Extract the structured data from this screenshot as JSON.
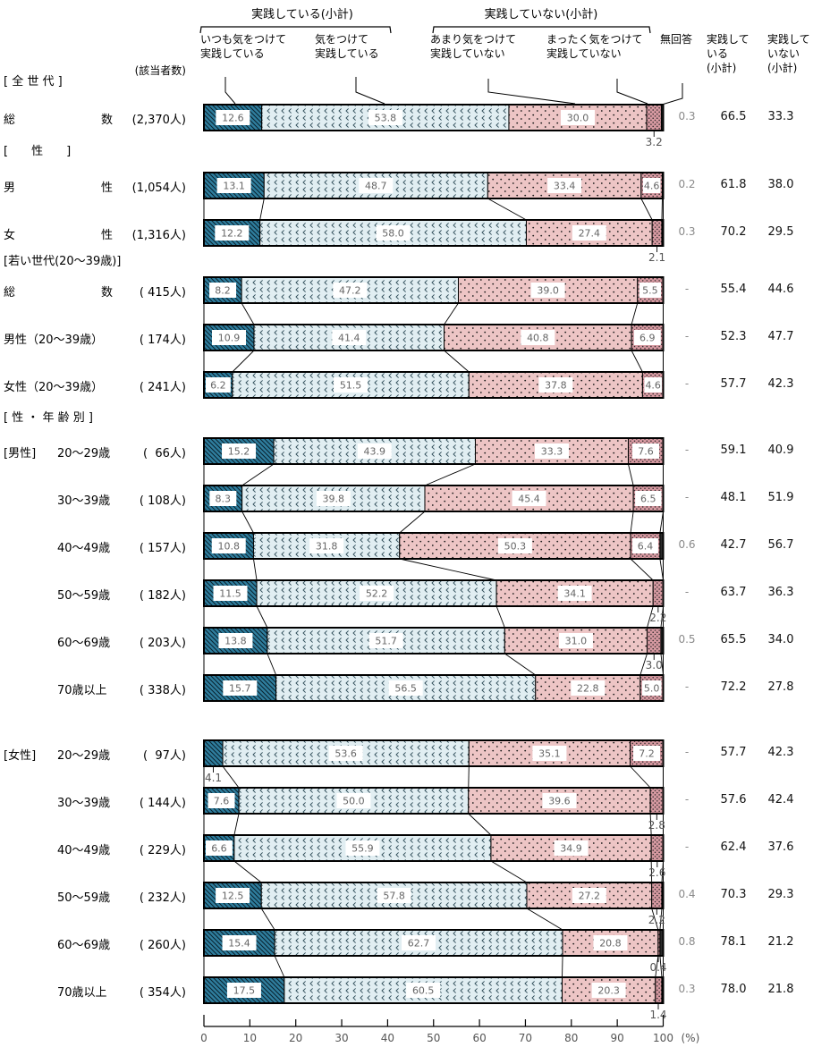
{
  "header": {
    "group_practicing": "実践している(小計)",
    "group_not_practicing": "実践していない(小計)",
    "col_always": [
      "いつも気をつけて",
      "実践している"
    ],
    "col_usually": [
      "気をつけて",
      "実践している"
    ],
    "col_not_much": [
      "あまり気をつけて",
      "実践していない"
    ],
    "col_not_at_all": [
      "まったく気をつけて",
      "実践していない"
    ],
    "col_no_answer": "無回答",
    "col_subtotal_yes": [
      "実践して",
      "いる",
      "(小計)"
    ],
    "col_subtotal_no": [
      "実践して",
      "いない",
      "(小計)"
    ],
    "respondents_label": "(該当者数)"
  },
  "sections": [
    {
      "title": "[ 全 世 代 ]"
    },
    {
      "title": "[　　性　　]"
    },
    {
      "title": "[若い世代(20～39歳)]"
    },
    {
      "title": "[ 性 ・ 年 齢 別 ]"
    }
  ],
  "groups": [
    {
      "label": "[男性]"
    },
    {
      "label": "[女性]"
    }
  ],
  "axis": {
    "ticks": [
      0,
      10,
      20,
      30,
      40,
      50,
      60,
      70,
      80,
      90,
      100
    ],
    "unit": "(%)"
  },
  "colors": {
    "seg_always": "#2f7e9e",
    "seg_usually": "#e1eef2",
    "seg_not_much": "#edc5c5",
    "seg_not_at_all": "#d699a1",
    "seg_no_answer": "#2b2b2b",
    "in_bar_text": "#666666",
    "no_answer_text": "#8a8a8a",
    "subtotal_text": "#111111"
  },
  "chart_data": {
    "type": "bar",
    "orientation": "horizontal",
    "stacked": true,
    "xlim": [
      0,
      100
    ],
    "unit": "%",
    "legend_position": "top",
    "series_names": [
      "いつも気をつけて実践している",
      "気をつけて実践している",
      "あまり気をつけて実践していない",
      "まったく気をつけて実践していない",
      "無回答"
    ],
    "rows": [
      {
        "label_parts": [
          "総",
          "数"
        ],
        "count": "(2,370人)",
        "values": [
          12.6,
          53.8,
          30.0,
          3.2
        ],
        "no_answer": "0.3",
        "subtotal_yes": 66.5,
        "subtotal_no": 33.3
      },
      {
        "label_parts": [
          "男",
          "性"
        ],
        "count": "(1,054人)",
        "values": [
          13.1,
          48.7,
          33.4,
          4.6
        ],
        "no_answer": "0.2",
        "subtotal_yes": 61.8,
        "subtotal_no": 38.0
      },
      {
        "label_parts": [
          "女",
          "性"
        ],
        "count": "(1,316人)",
        "values": [
          12.2,
          58.0,
          27.4,
          2.1
        ],
        "no_answer": "0.3",
        "subtotal_yes": 70.2,
        "subtotal_no": 29.5
      },
      {
        "label_parts": [
          "総",
          "数"
        ],
        "count": "( 415人)",
        "values": [
          8.2,
          47.2,
          39.0,
          5.5
        ],
        "no_answer": "-",
        "subtotal_yes": 55.4,
        "subtotal_no": 44.6
      },
      {
        "label": "男性（20～39歳）",
        "count": "( 174人)",
        "values": [
          10.9,
          41.4,
          40.8,
          6.9
        ],
        "no_answer": "-",
        "subtotal_yes": 52.3,
        "subtotal_no": 47.7
      },
      {
        "label": "女性（20～39歳）",
        "count": "( 241人)",
        "values": [
          6.2,
          51.5,
          37.8,
          4.6
        ],
        "no_answer": "-",
        "subtotal_yes": 57.7,
        "subtotal_no": 42.3
      },
      {
        "label": "20～29歳",
        "count": "(  66人)",
        "values": [
          15.2,
          43.9,
          33.3,
          7.6
        ],
        "no_answer": "-",
        "subtotal_yes": 59.1,
        "subtotal_no": 40.9
      },
      {
        "label": "30～39歳",
        "count": "( 108人)",
        "values": [
          8.3,
          39.8,
          45.4,
          6.5
        ],
        "no_answer": "-",
        "subtotal_yes": 48.1,
        "subtotal_no": 51.9
      },
      {
        "label": "40～49歳",
        "count": "( 157人)",
        "values": [
          10.8,
          31.8,
          50.3,
          6.4
        ],
        "no_answer": "0.6",
        "subtotal_yes": 42.7,
        "subtotal_no": 56.7
      },
      {
        "label": "50～59歳",
        "count": "( 182人)",
        "values": [
          11.5,
          52.2,
          34.1,
          2.2
        ],
        "no_answer": "-",
        "subtotal_yes": 63.7,
        "subtotal_no": 36.3
      },
      {
        "label": "60～69歳",
        "count": "( 203人)",
        "values": [
          13.8,
          51.7,
          31.0,
          3.0
        ],
        "no_answer": "0.5",
        "subtotal_yes": 65.5,
        "subtotal_no": 34.0
      },
      {
        "label": "70歳以上",
        "count": "( 338人)",
        "values": [
          15.7,
          56.5,
          22.8,
          5.0
        ],
        "no_answer": "-",
        "subtotal_yes": 72.2,
        "subtotal_no": 27.8
      },
      {
        "label": "20～29歳",
        "count": "(  97人)",
        "values": [
          4.1,
          53.6,
          35.1,
          7.2
        ],
        "no_answer": "-",
        "subtotal_yes": 57.7,
        "subtotal_no": 42.3
      },
      {
        "label": "30～39歳",
        "count": "( 144人)",
        "values": [
          7.6,
          50.0,
          39.6,
          2.8
        ],
        "no_answer": "-",
        "subtotal_yes": 57.6,
        "subtotal_no": 42.4
      },
      {
        "label": "40～49歳",
        "count": "( 229人)",
        "values": [
          6.6,
          55.9,
          34.9,
          2.6
        ],
        "no_answer": "-",
        "subtotal_yes": 62.4,
        "subtotal_no": 37.6
      },
      {
        "label": "50～59歳",
        "count": "( 232人)",
        "values": [
          12.5,
          57.8,
          27.2,
          2.2
        ],
        "no_answer": "0.4",
        "subtotal_yes": 70.3,
        "subtotal_no": 29.3
      },
      {
        "label": "60～69歳",
        "count": "( 260人)",
        "values": [
          15.4,
          62.7,
          20.8,
          0.4
        ],
        "no_answer": "0.8",
        "subtotal_yes": 78.1,
        "subtotal_no": 21.2
      },
      {
        "label": "70歳以上",
        "count": "( 354人)",
        "values": [
          17.5,
          60.5,
          20.3,
          1.4
        ],
        "no_answer": "0.3",
        "subtotal_yes": 78.0,
        "subtotal_no": 21.8
      }
    ]
  }
}
